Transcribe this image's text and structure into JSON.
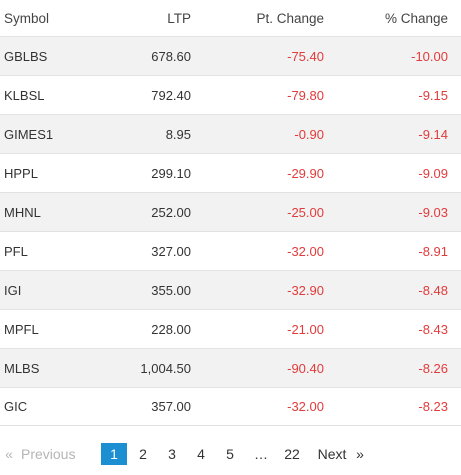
{
  "table": {
    "headers": {
      "symbol": "Symbol",
      "ltp": "LTP",
      "pt_change": "Pt. Change",
      "pct_change": "% Change"
    },
    "rows": [
      {
        "symbol": "GBLBS",
        "ltp": "678.60",
        "pt_change": "-75.40",
        "pct_change": "-10.00"
      },
      {
        "symbol": "KLBSL",
        "ltp": "792.40",
        "pt_change": "-79.80",
        "pct_change": "-9.15"
      },
      {
        "symbol": "GIMES1",
        "ltp": "8.95",
        "pt_change": "-0.90",
        "pct_change": "-9.14"
      },
      {
        "symbol": "HPPL",
        "ltp": "299.10",
        "pt_change": "-29.90",
        "pct_change": "-9.09"
      },
      {
        "symbol": "MHNL",
        "ltp": "252.00",
        "pt_change": "-25.00",
        "pct_change": "-9.03"
      },
      {
        "symbol": "PFL",
        "ltp": "327.00",
        "pt_change": "-32.00",
        "pct_change": "-8.91"
      },
      {
        "symbol": "IGI",
        "ltp": "355.00",
        "pt_change": "-32.90",
        "pct_change": "-8.48"
      },
      {
        "symbol": "MPFL",
        "ltp": "228.00",
        "pt_change": "-21.00",
        "pct_change": "-8.43"
      },
      {
        "symbol": "MLBS",
        "ltp": "1,004.50",
        "pt_change": "-90.40",
        "pct_change": "-8.26"
      },
      {
        "symbol": "GIC",
        "ltp": "357.00",
        "pt_change": "-32.00",
        "pct_change": "-8.23"
      }
    ]
  },
  "pagination": {
    "prev_arrow": "«",
    "prev_label": "Previous",
    "pages": [
      "1",
      "2",
      "3",
      "4",
      "5"
    ],
    "active_page": "1",
    "ellipsis": "…",
    "last_page": "22",
    "next_label": "Next",
    "next_arrow": "»"
  },
  "colors": {
    "negative": "#e23b3b",
    "active_page_bg": "#1b8fd1",
    "stripe": "#f2f2f2"
  }
}
